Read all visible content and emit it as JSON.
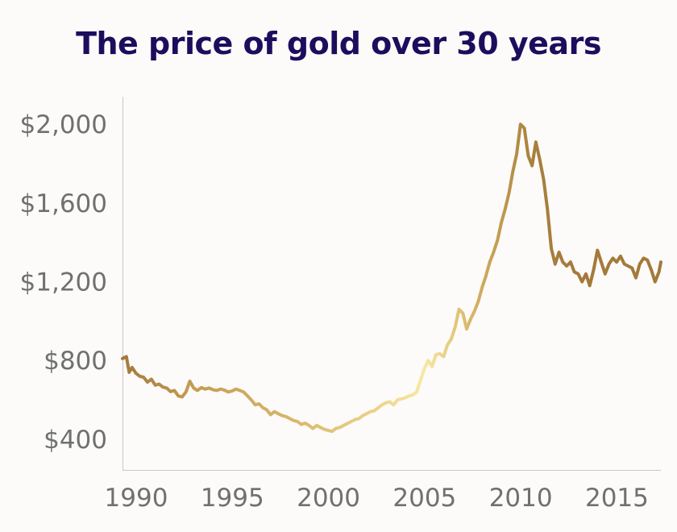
{
  "title": "The price of gold over 30 years",
  "chart_data": {
    "type": "line",
    "title": "The price of gold over 30 years",
    "xlabel": "",
    "ylabel": "",
    "xlim": [
      1990,
      2018
    ],
    "ylim": [
      240,
      2140
    ],
    "x_ticks": [
      1990,
      1995,
      2000,
      2005,
      2010,
      2015
    ],
    "x_tick_labels": [
      "1990",
      "1995",
      "2000",
      "2005",
      "2010",
      "2015"
    ],
    "y_ticks": [
      400,
      800,
      1200,
      1600,
      2000
    ],
    "y_tick_labels": [
      "$400",
      "$800",
      "$1,200",
      "$1,600",
      "$2,000"
    ],
    "grid": false,
    "colors": {
      "line_dark": "#a47a3a",
      "line_light": "#f7e9a0",
      "title": "#1c0e5c",
      "tick_text": "#707070",
      "axis": "#c8c8c8"
    },
    "series": [
      {
        "x": [
          1990.0,
          1990.2,
          1990.35,
          1990.5,
          1990.7,
          1990.9,
          1991.1,
          1991.3,
          1991.5,
          1991.7,
          1991.9,
          1992.1,
          1992.3,
          1992.5,
          1992.7,
          1992.9,
          1993.1,
          1993.3,
          1993.5,
          1993.7,
          1993.9,
          1994.1,
          1994.3,
          1994.5,
          1994.7,
          1994.9,
          1995.1,
          1995.3,
          1995.5,
          1995.7,
          1995.9,
          1996.1,
          1996.3,
          1996.5,
          1996.7,
          1996.9,
          1997.1,
          1997.3,
          1997.5,
          1997.7,
          1997.9,
          1998.1,
          1998.3,
          1998.5,
          1998.7,
          1998.9,
          1999.1,
          1999.3,
          1999.5,
          1999.7,
          1999.9,
          2000.1,
          2000.3,
          2000.5,
          2000.7,
          2000.9,
          2001.1,
          2001.3,
          2001.5,
          2001.7,
          2001.9,
          2002.1,
          2002.3,
          2002.5,
          2002.7,
          2002.9,
          2003.1,
          2003.3,
          2003.5,
          2003.7,
          2003.9,
          2004.1,
          2004.3,
          2004.5,
          2004.7,
          2004.9,
          2005.1,
          2005.3,
          2005.5,
          2005.7,
          2005.9,
          2006.1,
          2006.3,
          2006.5,
          2006.7,
          2006.9,
          2007.1,
          2007.3,
          2007.5,
          2007.7,
          2007.9,
          2008.1,
          2008.3,
          2008.5,
          2008.7,
          2008.9,
          2009.1,
          2009.3,
          2009.5,
          2009.7,
          2009.9,
          2010.1,
          2010.3,
          2010.5,
          2010.7,
          2010.9,
          2011.1,
          2011.3,
          2011.5,
          2011.7,
          2011.9,
          2012.1,
          2012.3,
          2012.5,
          2012.7,
          2012.9,
          2013.1,
          2013.3,
          2013.5,
          2013.7,
          2013.9,
          2014.1,
          2014.3,
          2014.5,
          2014.7,
          2014.9,
          2015.1,
          2015.3,
          2015.5,
          2015.7,
          2015.9,
          2016.1,
          2016.3,
          2016.5,
          2016.7,
          2016.9,
          2017.1,
          2017.3,
          2017.5,
          2017.7,
          2017.9,
          2018.0
        ],
        "values": [
          810,
          820,
          740,
          765,
          735,
          720,
          715,
          690,
          705,
          675,
          680,
          665,
          660,
          642,
          648,
          620,
          615,
          640,
          695,
          660,
          648,
          662,
          655,
          660,
          652,
          648,
          655,
          650,
          640,
          645,
          655,
          648,
          640,
          620,
          600,
          575,
          580,
          560,
          550,
          525,
          540,
          530,
          520,
          515,
          505,
          495,
          490,
          475,
          482,
          470,
          455,
          470,
          460,
          450,
          445,
          440,
          455,
          460,
          470,
          480,
          490,
          500,
          505,
          520,
          530,
          540,
          545,
          560,
          575,
          585,
          590,
          575,
          600,
          605,
          610,
          620,
          625,
          640,
          700,
          760,
          800,
          770,
          830,
          835,
          820,
          880,
          910,
          970,
          1060,
          1040,
          960,
          1010,
          1050,
          1100,
          1170,
          1230,
          1300,
          1350,
          1410,
          1500,
          1570,
          1650,
          1760,
          1850,
          2000,
          1980,
          1840,
          1790,
          1910,
          1820,
          1720,
          1570,
          1370,
          1290,
          1350,
          1300,
          1280,
          1300,
          1250,
          1240,
          1200,
          1240,
          1180,
          1260,
          1360,
          1300,
          1240,
          1290,
          1320,
          1300,
          1330,
          1290,
          1280,
          1270,
          1220,
          1290,
          1320,
          1310,
          1260,
          1200,
          1250,
          1300
        ]
      }
    ]
  }
}
